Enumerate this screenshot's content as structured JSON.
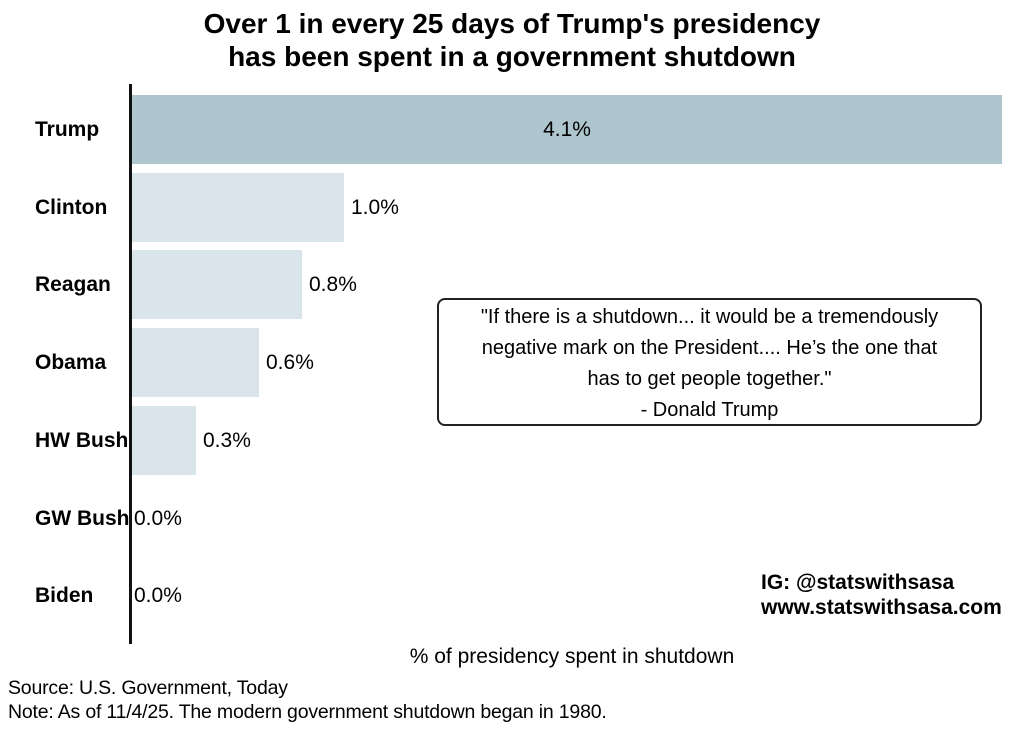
{
  "title": {
    "line1": "Over 1 in every 25 days of Trump's presidency",
    "line2": "has been spent in a government shutdown"
  },
  "chart_data": {
    "type": "bar",
    "orientation": "horizontal",
    "categories": [
      "Trump",
      "Clinton",
      "Reagan",
      "Obama",
      "HW Bush",
      "GW Bush",
      "Biden"
    ],
    "values": [
      4.1,
      1.0,
      0.8,
      0.6,
      0.3,
      0.0,
      0.0
    ],
    "value_labels": [
      "4.1%",
      "1.0%",
      "0.8%",
      "0.6%",
      "0.3%",
      "0.0%",
      "0.0%"
    ],
    "xlabel": "% of presidency spent in shutdown",
    "xlim": [
      0,
      4.15
    ],
    "grid": false,
    "legend": "none",
    "highlight_index": 0,
    "bar_color_highlight": "#AEC6CE",
    "bar_color_default": "#DAE5EB"
  },
  "quote": {
    "lines": [
      "\"If there is a shutdown... it would be a tremendously",
      "negative mark on the President.... He’s the one that",
      "has to get people together.\""
    ],
    "attribution": "- Donald Trump"
  },
  "social": {
    "line1": "IG: @statswithsasa",
    "line2": "www.statswithsasa.com"
  },
  "footer": {
    "source": "Source: U.S. Government, Today",
    "note": "Note: As of 11/4/25. The modern government shutdown began in 1980."
  }
}
